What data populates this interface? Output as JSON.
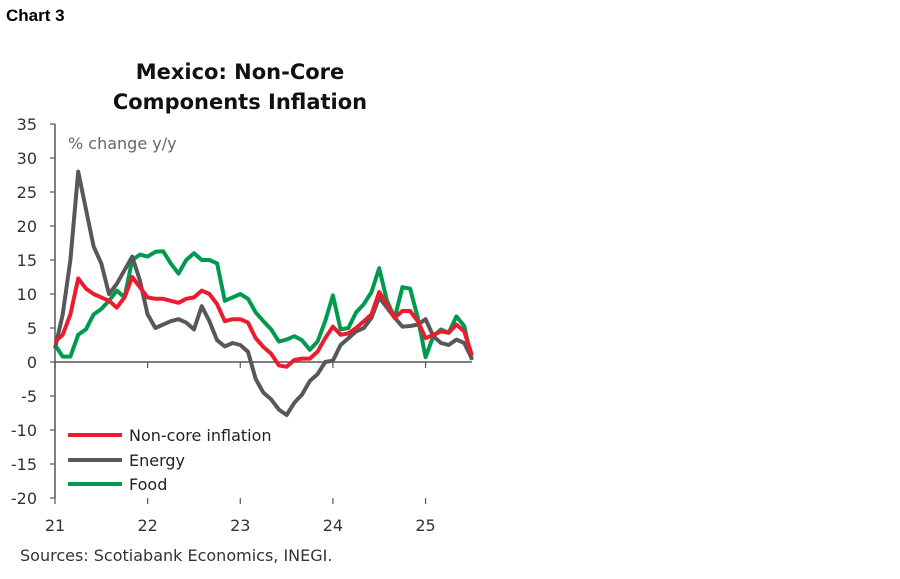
{
  "header": {
    "chart_label": "Chart 3"
  },
  "footer": {
    "sources": "Sources: Scotiabank Economics, INEGI."
  },
  "chart_data": {
    "type": "line",
    "title_lines": [
      "Mexico: Non-Core",
      "Components Inflation"
    ],
    "ylabel": "% change y/y",
    "xlabel": "",
    "ylim": [
      -20,
      35
    ],
    "yticks": [
      35,
      30,
      25,
      20,
      15,
      10,
      5,
      0,
      -5,
      -10,
      -15,
      -20
    ],
    "xticks": [
      "21",
      "22",
      "23",
      "24",
      "25"
    ],
    "x_start": "2021-01",
    "x_frequency": "monthly",
    "grid": false,
    "legend_placement": "bottom-left",
    "series": [
      {
        "name": "Non-core inflation",
        "color": "#ec1c2e",
        "values": [
          3,
          4,
          7,
          12.3,
          10.8,
          10,
          9.5,
          9,
          8,
          9.5,
          12.5,
          11,
          9.5,
          9.3,
          9.3,
          9,
          8.7,
          9.3,
          9.5,
          10.5,
          10,
          8.5,
          6,
          6.3,
          6.3,
          5.8,
          3.5,
          2.2,
          1.2,
          -0.5,
          -0.7,
          0.3,
          0.5,
          0.5,
          1.5,
          3.5,
          5.2,
          4,
          4.2,
          5,
          6,
          7,
          10.3,
          8.5,
          6.5,
          7.5,
          7.5,
          6,
          3.5,
          4,
          4.5,
          4.3,
          5.5,
          4.5,
          1
        ]
      },
      {
        "name": "Energy",
        "color": "#58585a",
        "values": [
          2,
          7,
          15,
          28,
          22.5,
          17,
          14.5,
          10,
          11.5,
          13.5,
          15.5,
          12,
          7,
          5,
          5.5,
          6,
          6.3,
          5.8,
          4.8,
          8.2,
          6,
          3.2,
          2.3,
          2.8,
          2.5,
          1.5,
          -2.5,
          -4.5,
          -5.5,
          -7,
          -7.8,
          -6,
          -4.8,
          -2.8,
          -1.8,
          0,
          0.2,
          2.5,
          3.5,
          4.5,
          5,
          6.5,
          9.5,
          8,
          6.5,
          5.2,
          5.3,
          5.5,
          6.3,
          3.8,
          2.8,
          2.5,
          3.3,
          2.8,
          0.5
        ]
      },
      {
        "name": "Food",
        "color": "#009a4e",
        "values": [
          2.5,
          0.8,
          0.8,
          4,
          4.8,
          7,
          7.8,
          9,
          10.5,
          9.5,
          15,
          15.8,
          15.5,
          16.2,
          16.3,
          14.5,
          13,
          15,
          16,
          15,
          15,
          14.5,
          9,
          9.5,
          10,
          9.3,
          7.3,
          6,
          4.8,
          3,
          3.3,
          3.8,
          3.2,
          1.8,
          3,
          6,
          9.8,
          4.8,
          5,
          7.3,
          8.5,
          10.3,
          13.8,
          9,
          6.5,
          11,
          10.8,
          6.5,
          0.7,
          3.8,
          4.8,
          4.3,
          6.7,
          5.3,
          0.3
        ]
      }
    ]
  }
}
